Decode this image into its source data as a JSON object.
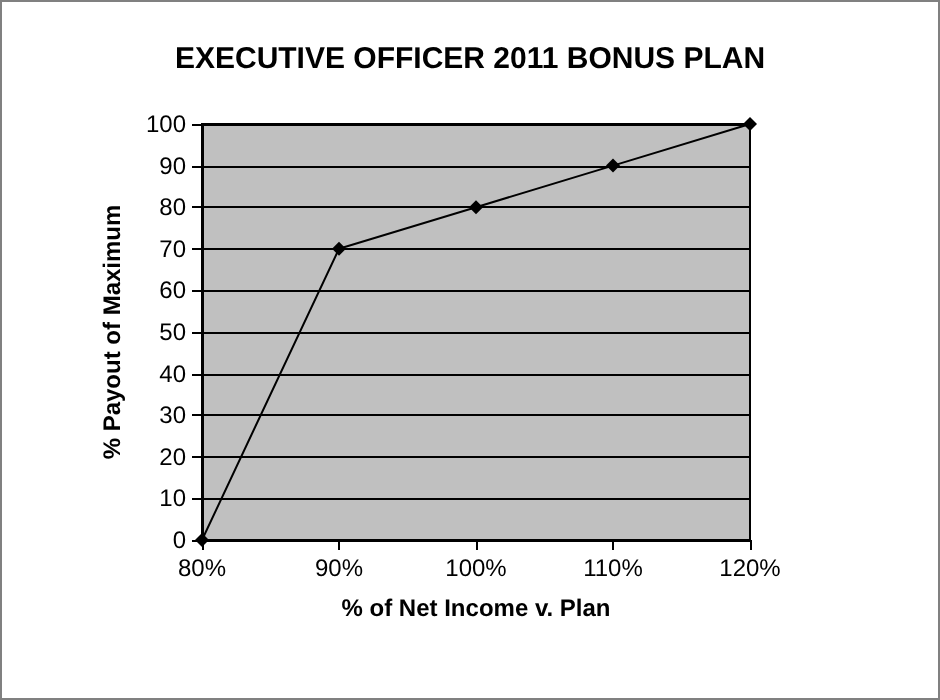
{
  "chart_data": {
    "type": "line",
    "title": "EXECUTIVE OFFICER 2011 BONUS PLAN",
    "xlabel": "% of Net Income v. Plan",
    "ylabel": "% Payout of Maximum",
    "x": [
      80,
      90,
      100,
      110,
      120
    ],
    "series": [
      {
        "color": "#000000",
        "values": [
          0,
          70,
          80,
          90,
          100
        ]
      }
    ],
    "xlim": [
      80,
      120
    ],
    "xticks": [
      {
        "value": 80,
        "label": "80%"
      },
      {
        "value": 90,
        "label": "90%"
      },
      {
        "value": 100,
        "label": "100%"
      },
      {
        "value": 110,
        "label": "110%"
      },
      {
        "value": 120,
        "label": "120%"
      }
    ],
    "ylim": [
      0,
      100
    ],
    "yticks": [
      0,
      10,
      20,
      30,
      40,
      50,
      60,
      70,
      80,
      90,
      100
    ],
    "grid": "y",
    "marker": "diamond",
    "line_style": "solid"
  }
}
